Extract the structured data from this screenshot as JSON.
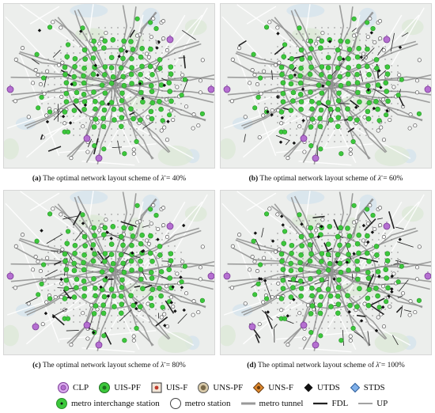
{
  "panels": [
    {
      "id": "a",
      "label": "(a)",
      "caption": " The optimal network layout scheme of ",
      "symbol": "λ̄",
      "value": "= 40%",
      "level": 0.4
    },
    {
      "id": "b",
      "label": "(b)",
      "caption": " The optimal network layout scheme of ",
      "symbol": "λ̄",
      "value": "= 60%",
      "level": 0.6
    },
    {
      "id": "c",
      "label": "(c)",
      "caption": " The optimal network layout scheme of ",
      "symbol": "λ̄",
      "value": "= 80%",
      "level": 0.8
    },
    {
      "id": "d",
      "label": "(d)",
      "caption": " The optimal network layout scheme of ",
      "symbol": "λ̄",
      "value": "= 100%",
      "level": 1.0
    }
  ],
  "legend": {
    "row1": [
      {
        "name": "clp",
        "label": "CLP",
        "icon": "clp-icon"
      },
      {
        "name": "uis-pf",
        "label": "UIS-PF",
        "icon": "uis-pf-icon"
      },
      {
        "name": "uis-f",
        "label": "UIS-F",
        "icon": "uis-f-icon"
      },
      {
        "name": "uns-pf",
        "label": "UNS-PF",
        "icon": "uns-pf-icon"
      },
      {
        "name": "uns-f",
        "label": "UNS-F",
        "icon": "uns-f-icon"
      },
      {
        "name": "utds",
        "label": "UTDS",
        "icon": "utds-icon"
      },
      {
        "name": "stds",
        "label": "STDS",
        "icon": "stds-icon"
      }
    ],
    "row2": [
      {
        "name": "metro-interchange",
        "label": "metro interchange station",
        "icon": "metro-interchange-icon"
      },
      {
        "name": "metro-station",
        "label": "metro station",
        "icon": "metro-station-icon"
      },
      {
        "name": "metro-tunnel",
        "label": "metro tunnel",
        "icon": "metro-tunnel-icon"
      },
      {
        "name": "fdl",
        "label": "FDL",
        "icon": "fdl-icon"
      },
      {
        "name": "up",
        "label": "UP",
        "icon": "up-icon"
      }
    ]
  },
  "colors": {
    "clp": "#b56fd1",
    "uis_pf": "#3cc83c",
    "metro_line": "#8f8f8f",
    "map_bg": "#eceeec",
    "fdl": "#222222",
    "utds": "#111111",
    "stds": "#5a8fd6"
  }
}
